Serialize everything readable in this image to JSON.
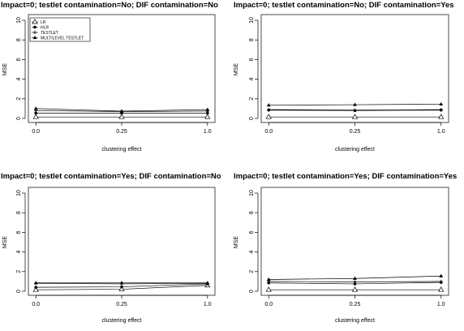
{
  "chart_data": [
    {
      "type": "line",
      "title": "Impact=0; testlet contamination=No; DIF contamination=No",
      "xlabel": "clustering effect",
      "ylabel": "MSE",
      "x_categories": [
        "0.0",
        "0.25",
        "1.0"
      ],
      "ylim": [
        0,
        10
      ],
      "yticks": [
        "0",
        "2",
        "4",
        "6",
        "8",
        "10"
      ],
      "legend": {
        "position": "top-left",
        "entries": [
          "LR",
          "HLR",
          "TESTLET",
          "MULTILEVEL TESTLET"
        ]
      },
      "series": [
        {
          "name": "LR",
          "values": [
            0.15,
            0.15,
            0.15
          ]
        },
        {
          "name": "HLR",
          "values": [
            0.55,
            0.55,
            0.55
          ]
        },
        {
          "name": "TESTLET",
          "values": [
            0.8,
            0.7,
            0.75
          ]
        },
        {
          "name": "MULTILEVEL TESTLET",
          "values": [
            1.0,
            0.75,
            0.9
          ]
        }
      ]
    },
    {
      "type": "line",
      "title": "Impact=0; testlet contamination=No; DIF contamination=Yes",
      "xlabel": "clustering effect",
      "ylabel": "MSE",
      "x_categories": [
        "0.0",
        "0.25",
        "1.0"
      ],
      "ylim": [
        0,
        10
      ],
      "yticks": [
        "0",
        "2",
        "4",
        "6",
        "8",
        "10"
      ],
      "series": [
        {
          "name": "LR",
          "values": [
            0.15,
            0.15,
            0.15
          ]
        },
        {
          "name": "HLR",
          "values": [
            0.85,
            0.8,
            0.85
          ]
        },
        {
          "name": "TESTLET",
          "values": [
            0.9,
            0.85,
            0.9
          ]
        },
        {
          "name": "MULTILEVEL TESTLET",
          "values": [
            1.35,
            1.4,
            1.45
          ]
        }
      ]
    },
    {
      "type": "line",
      "title": "Impact=0; testlet contamination=Yes; DIF contamination=No",
      "xlabel": "clustering effect",
      "ylabel": "MSE",
      "x_categories": [
        "0.0",
        "0.25",
        "1.0"
      ],
      "ylim": [
        0,
        10
      ],
      "yticks": [
        "0",
        "2",
        "4",
        "6",
        "8",
        "10"
      ],
      "series": [
        {
          "name": "LR",
          "values": [
            0.15,
            0.2,
            0.6
          ]
        },
        {
          "name": "HLR",
          "values": [
            0.4,
            0.45,
            0.75
          ]
        },
        {
          "name": "TESTLET",
          "values": [
            0.8,
            0.75,
            0.8
          ]
        },
        {
          "name": "MULTILEVEL TESTLET",
          "values": [
            0.85,
            0.85,
            0.85
          ]
        }
      ]
    },
    {
      "type": "line",
      "title": "Impact=0; testlet contamination=Yes; DIF contamination=Yes",
      "xlabel": "clustering effect",
      "ylabel": "MSE",
      "x_categories": [
        "0.0",
        "0.25",
        "1.0"
      ],
      "ylim": [
        0,
        10
      ],
      "yticks": [
        "0",
        "2",
        "4",
        "6",
        "8",
        "10"
      ],
      "series": [
        {
          "name": "LR",
          "values": [
            0.15,
            0.15,
            0.15
          ]
        },
        {
          "name": "HLR",
          "values": [
            0.85,
            0.75,
            0.9
          ]
        },
        {
          "name": "TESTLET",
          "values": [
            1.0,
            0.95,
            1.0
          ]
        },
        {
          "name": "MULTILEVEL TESTLET",
          "values": [
            1.2,
            1.3,
            1.55
          ]
        }
      ]
    }
  ]
}
